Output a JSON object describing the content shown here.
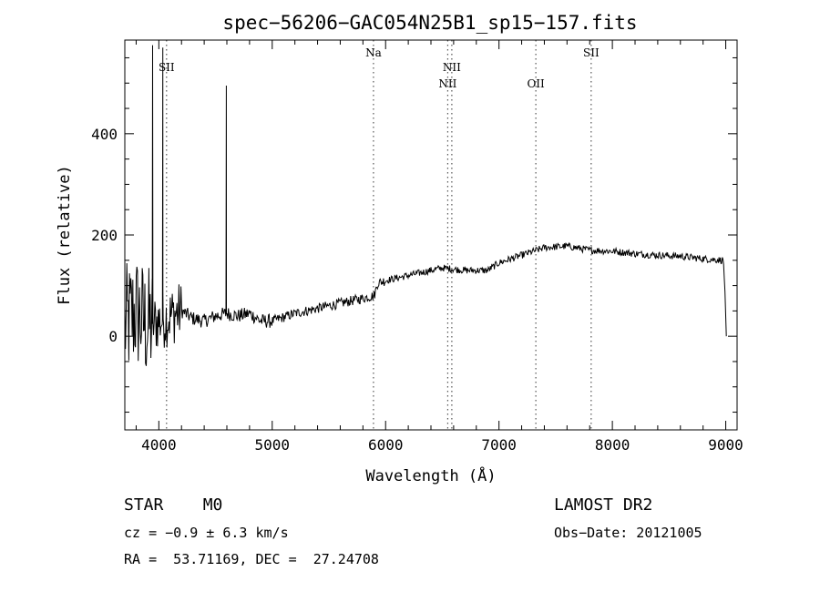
{
  "colors": {
    "background": "#ffffff",
    "ink": "#000000",
    "line_marker": "#555555"
  },
  "chart_data": {
    "type": "line",
    "title": "spec−56206−GAC054N25B1_sp15−157.fits",
    "xlabel": "Wavelength (Å)",
    "ylabel": "Flux (relative)",
    "xlim": [
      3700,
      9100
    ],
    "ylim": [
      -185,
      585
    ],
    "x_ticks": [
      4000,
      5000,
      6000,
      7000,
      8000,
      9000
    ],
    "x_tick_labels": [
      "4000",
      "5000",
      "6000",
      "7000",
      "8000",
      "9000"
    ],
    "y_ticks": [
      0,
      200,
      400
    ],
    "y_tick_labels": [
      "0",
      "200",
      "400"
    ],
    "grid": false,
    "line_markers": [
      {
        "label": "SII",
        "x": 4068,
        "row": 1
      },
      {
        "label": "Na",
        "x": 5893,
        "row": 0
      },
      {
        "label": "NII",
        "x": 6548,
        "row": 2
      },
      {
        "label": "NII",
        "x": 6584,
        "row": 1
      },
      {
        "label": "OII",
        "x": 7325,
        "row": 2
      },
      {
        "label": "SII",
        "x": 7813,
        "row": 0
      }
    ],
    "series": [
      {
        "anchors": [
          [
            3700,
            20
          ],
          [
            3800,
            50
          ],
          [
            3900,
            20
          ],
          [
            4000,
            30
          ],
          [
            4100,
            40
          ],
          [
            4200,
            50
          ],
          [
            4300,
            35
          ],
          [
            4400,
            30
          ],
          [
            4500,
            40
          ],
          [
            4600,
            45
          ],
          [
            4700,
            40
          ],
          [
            4800,
            45
          ],
          [
            4900,
            30
          ],
          [
            5000,
            30
          ],
          [
            5200,
            45
          ],
          [
            5400,
            55
          ],
          [
            5600,
            65
          ],
          [
            5800,
            75
          ],
          [
            5900,
            80
          ],
          [
            5930,
            105
          ],
          [
            6000,
            110
          ],
          [
            6200,
            120
          ],
          [
            6400,
            130
          ],
          [
            6500,
            135
          ],
          [
            6700,
            130
          ],
          [
            6900,
            130
          ],
          [
            7000,
            145
          ],
          [
            7200,
            160
          ],
          [
            7400,
            175
          ],
          [
            7600,
            178
          ],
          [
            7800,
            170
          ],
          [
            8000,
            168
          ],
          [
            8200,
            163
          ],
          [
            8400,
            160
          ],
          [
            8600,
            158
          ],
          [
            8800,
            153
          ],
          [
            8980,
            150
          ],
          [
            8995,
            80
          ],
          [
            9005,
            0
          ]
        ],
        "spikes": [
          {
            "x": 3945,
            "y": 575
          },
          {
            "x": 4035,
            "y": 570
          },
          {
            "x": 4595,
            "y": 495
          }
        ],
        "noisy_region": [
          3700,
          4200
        ],
        "points": 900
      }
    ]
  },
  "footer": {
    "left": {
      "classification": "STAR    M0",
      "redshift": "cz = −0.9 ± 6.3 km/s",
      "coords": "RA =  53.71169, DEC =  27.24708"
    },
    "right": {
      "survey": "LAMOST DR2",
      "obs_date": "Obs−Date: 20121005"
    }
  }
}
